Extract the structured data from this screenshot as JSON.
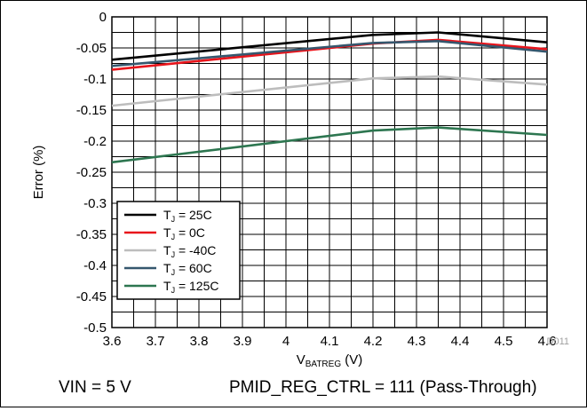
{
  "chart_data": {
    "type": "line",
    "xlabel_main": "V",
    "xlabel_sub": "BATREG",
    "xlabel_unit": " (V)",
    "ylabel": "Error (%)",
    "xlim": [
      3.6,
      4.6
    ],
    "ylim": [
      -0.5,
      0
    ],
    "x_ticks": [
      "3.6",
      "3.7",
      "3.8",
      "3.9",
      "4",
      "4.1",
      "4.2",
      "4.3",
      "4.4",
      "4.5",
      "4.6"
    ],
    "y_ticks": [
      "0",
      "-0.05",
      "-0.1",
      "-0.15",
      "-0.2",
      "-0.25",
      "-0.3",
      "-0.35",
      "-0.4",
      "-0.45",
      "-0.5"
    ],
    "grid": true,
    "legend_position": "bottom-left",
    "series": [
      {
        "name_main": "T",
        "name_sub": "J",
        "name_rest": " = 25C",
        "color": "#000000",
        "x": [
          3.6,
          4.2,
          4.35,
          4.6
        ],
        "y": [
          -0.069,
          -0.029,
          -0.025,
          -0.041
        ]
      },
      {
        "name_main": "T",
        "name_sub": "J",
        "name_rest": " = 0C",
        "color": "#e8141b",
        "x": [
          3.6,
          4.2,
          4.35,
          4.6
        ],
        "y": [
          -0.085,
          -0.043,
          -0.037,
          -0.052
        ]
      },
      {
        "name_main": "T",
        "name_sub": "J",
        "name_rest": " = -40C",
        "color": "#bdbdbd",
        "x": [
          3.6,
          4.2,
          4.35,
          4.6
        ],
        "y": [
          -0.143,
          -0.099,
          -0.096,
          -0.109
        ]
      },
      {
        "name_main": "T",
        "name_sub": "J",
        "name_rest": " = 60C",
        "color": "#35576e",
        "x": [
          3.6,
          4.2,
          4.35,
          4.6
        ],
        "y": [
          -0.079,
          -0.042,
          -0.039,
          -0.056
        ]
      },
      {
        "name_main": "T",
        "name_sub": "J",
        "name_rest": " = 125C",
        "color": "#2d7650",
        "x": [
          3.6,
          4.2,
          4.35,
          4.6
        ],
        "y": [
          -0.234,
          -0.183,
          -0.178,
          -0.19
        ]
      }
    ],
    "watermark": "D011"
  },
  "captions": {
    "left": "VIN = 5 V",
    "right": "PMID_REG_CTRL = 111 (Pass-Through)"
  }
}
